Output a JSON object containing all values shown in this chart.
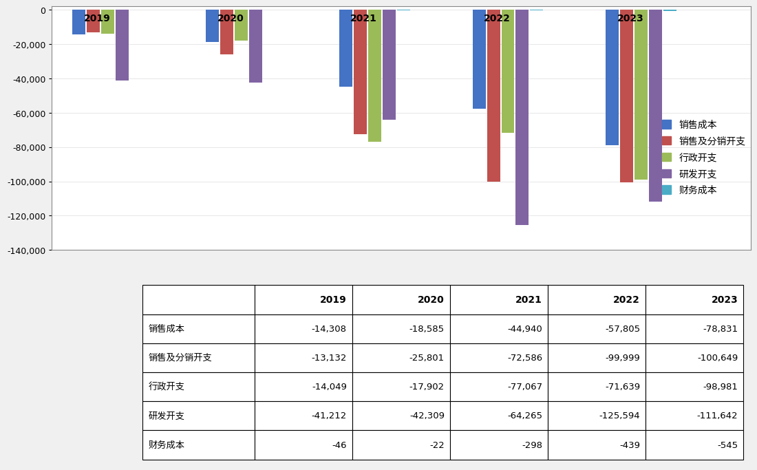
{
  "years": [
    "2019",
    "2020",
    "2021",
    "2022",
    "2023"
  ],
  "series": {
    "销售成本": [
      -14308,
      -18585,
      -44940,
      -57805,
      -78831
    ],
    "销售及分销开支": [
      -13132,
      -25801,
      -72586,
      -99999,
      -100649
    ],
    "行政开支": [
      -14049,
      -17902,
      -77067,
      -71639,
      -98981
    ],
    "研发开支": [
      -41212,
      -42309,
      -64265,
      -125594,
      -111642
    ],
    "财务成本": [
      -46,
      -22,
      -298,
      -439,
      -545
    ]
  },
  "colors": {
    "销售成本": "#4472C4",
    "销售及分销开支": "#C0504D",
    "行政开支": "#9BBB59",
    "研发开支": "#8064A2",
    "财务成本": "#4BACC6"
  },
  "ylim": [
    -140000,
    2000
  ],
  "yticks": [
    0,
    -20000,
    -40000,
    -60000,
    -80000,
    -100000,
    -120000,
    -140000
  ],
  "ytick_labels": [
    "0",
    "-20,000",
    "-40,000",
    "-60,000",
    "-80,000",
    "-100,000",
    "-120,000",
    "-140,000"
  ],
  "background_color": "#F0F0F0",
  "chart_bg": "#FFFFFF",
  "table_rows": [
    "销售成本",
    "销售及分销开支",
    "行政开支",
    "研发开支",
    "财务成本"
  ],
  "table_data": [
    [
      "-14,308",
      "-18,585",
      "-44,940",
      "-57,805",
      "-78,831"
    ],
    [
      "-13,132",
      "-25,801",
      "-72,586",
      "-99,999",
      "-100,649"
    ],
    [
      "-14,049",
      "-17,902",
      "-77,067",
      "-71,639",
      "-98,981"
    ],
    [
      "-41,212",
      "-42,309",
      "-64,265",
      "-125,594",
      "-111,642"
    ],
    [
      "-46",
      "-22",
      "-298",
      "-439",
      "-545"
    ]
  ],
  "table_col_headers": [
    "2019",
    "2020",
    "2021",
    "2022",
    "2023"
  ]
}
